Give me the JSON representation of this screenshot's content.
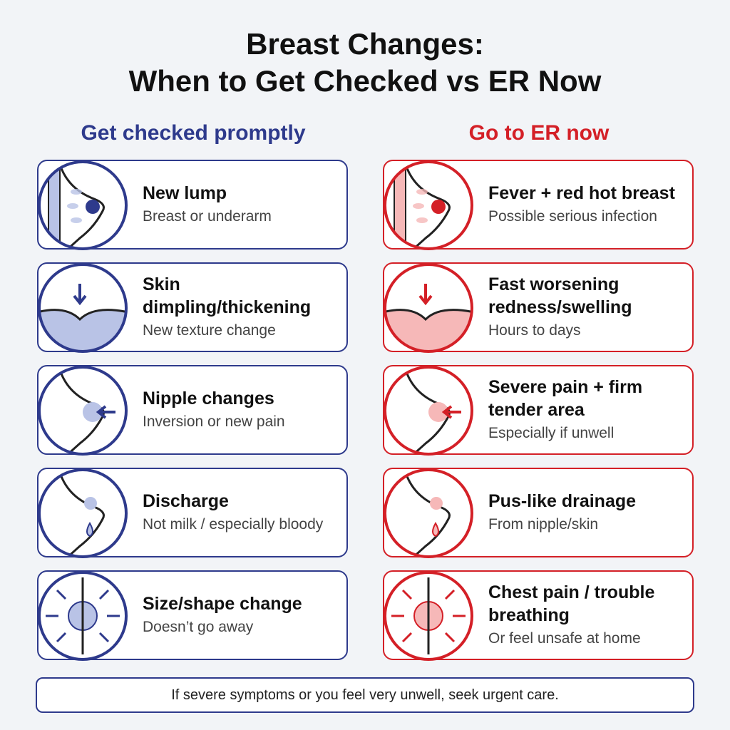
{
  "title": {
    "line1": "Breast Changes:",
    "line2": "When to Get Checked vs ER Now"
  },
  "colors": {
    "blue": "#2e3a8c",
    "red": "#d42027",
    "light_blue": "#b9c3e6",
    "light_red": "#f6b8b8"
  },
  "left": {
    "heading": "Get checked promptly",
    "items": [
      {
        "title": "New lump",
        "subtitle": "Breast or underarm",
        "icon": "breast-lump-icon"
      },
      {
        "title": "Skin dimpling/thickening",
        "subtitle": "New texture change",
        "icon": "skin-dimpling-icon"
      },
      {
        "title": "Nipple changes",
        "subtitle": "Inversion or new pain",
        "icon": "nipple-inversion-icon"
      },
      {
        "title": "Discharge",
        "subtitle": "Not milk / especially bloody",
        "icon": "discharge-drop-icon"
      },
      {
        "title": "Size/shape change",
        "subtitle": "Doesn’t go away",
        "icon": "size-shape-change-icon"
      }
    ]
  },
  "right": {
    "heading": "Go to ER now",
    "items": [
      {
        "title": "Fever + red hot breast",
        "subtitle": "Possible serious infection",
        "icon": "fever-thermometer-icon"
      },
      {
        "title": "Fast worsening redness/swelling",
        "subtitle": "Hours to days",
        "icon": "worsening-swelling-clock-icon"
      },
      {
        "title": "Severe pain + firm tender area",
        "subtitle": "Especially if unwell",
        "icon": "severe-pain-icon"
      },
      {
        "title": "Pus-like drainage",
        "subtitle": "From nipple/skin",
        "icon": "pus-drainage-icon"
      },
      {
        "title": "Chest pain / trouble breathing",
        "subtitle": "Or feel unsafe at home",
        "icon": "lungs-breathing-icon"
      }
    ]
  },
  "footer": "If severe symptoms or you feel very unwell, seek urgent care."
}
